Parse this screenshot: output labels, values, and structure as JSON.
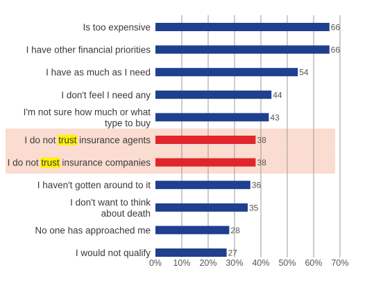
{
  "chart_data": {
    "type": "bar",
    "orientation": "horizontal",
    "categories": [
      "Is too expensive",
      "I have other financial priorities",
      "I have as much as I need",
      "I don't feel I need any",
      "I'm not sure how much or what type to buy",
      "I do not trust insurance agents",
      "I do not trust insurance companies",
      "I haven't gotten around to it",
      "I don't want to think about death",
      "No one has approached me",
      "I would not qualify"
    ],
    "category_lines": [
      [
        "Is too expensive"
      ],
      [
        "I have other financial priorities"
      ],
      [
        "I have as much as I need"
      ],
      [
        "I don't feel I need any"
      ],
      [
        "I'm not sure how much or what",
        "type to buy"
      ],
      [
        {
          "pre": "I do not ",
          "hl": "trust",
          "post": " insurance agents"
        }
      ],
      [
        {
          "pre": "I do not ",
          "hl": "trust",
          "post": " insurance companies"
        }
      ],
      [
        "I haven't gotten around to it"
      ],
      [
        "I don't want to think",
        "about death"
      ],
      [
        "No one has approached me"
      ],
      [
        "I would not qualify"
      ]
    ],
    "values": [
      66,
      66,
      54,
      44,
      43,
      38,
      38,
      36,
      35,
      28,
      27
    ],
    "value_labels": [
      "66",
      "66",
      "54",
      "44",
      "43",
      "38",
      "38",
      "36",
      "35",
      "28",
      "27"
    ],
    "highlighted": [
      false,
      false,
      false,
      false,
      false,
      true,
      true,
      false,
      false,
      false,
      false
    ],
    "xlim": [
      0,
      70
    ],
    "xticks": [
      "0%",
      "10%",
      "20%",
      "30%",
      "40%",
      "50%",
      "60%",
      "70%"
    ],
    "grid": true,
    "colors": {
      "bar": "#1f3f8f",
      "highlight_bar": "#e0262a",
      "highlight_band": "#fbdcd0",
      "word_highlight": "#fff200",
      "gridline": "#9a9a9a"
    }
  }
}
